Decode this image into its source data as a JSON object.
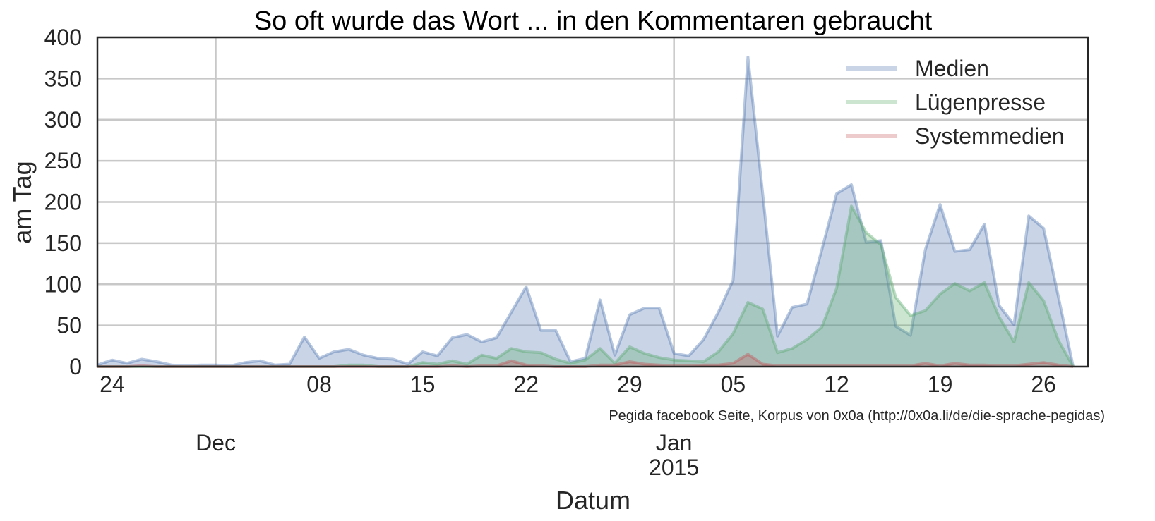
{
  "chart_data": {
    "type": "area",
    "title": "So oft wurde das Wort ... in den Kommentaren gebraucht",
    "xlabel": "Datum",
    "ylabel": "am Tag",
    "ylim": [
      0,
      400
    ],
    "yticks": [
      0,
      50,
      100,
      150,
      200,
      250,
      300,
      350,
      400
    ],
    "xlim": [
      "2014-11-23",
      "2015-01-29"
    ],
    "minor_ticks": [
      {
        "date": "2014-11-24",
        "label": "24"
      },
      {
        "date": "2014-12-08",
        "label": "08"
      },
      {
        "date": "2014-12-15",
        "label": "15"
      },
      {
        "date": "2014-12-22",
        "label": "22"
      },
      {
        "date": "2014-12-29",
        "label": "29"
      },
      {
        "date": "2015-01-05",
        "label": "05"
      },
      {
        "date": "2015-01-12",
        "label": "12"
      },
      {
        "date": "2015-01-19",
        "label": "19"
      },
      {
        "date": "2015-01-26",
        "label": "26"
      }
    ],
    "major_ticks": [
      {
        "date": "2014-12-01",
        "label": "Dec"
      },
      {
        "date": "2015-01-01",
        "label": "Jan",
        "sublabel": "2015"
      }
    ],
    "annotation": "Pegida facebook Seite, Korpus von 0x0a (http://0x0a.li/de/die-sprache-pegidas)",
    "grid": true,
    "legend_position": "top-right",
    "series": [
      {
        "name": "Medien",
        "color": "#4C72B0",
        "points": [
          [
            "2014-11-23",
            2
          ],
          [
            "2014-11-24",
            8
          ],
          [
            "2014-11-25",
            4
          ],
          [
            "2014-11-26",
            9
          ],
          [
            "2014-11-27",
            6
          ],
          [
            "2014-11-28",
            2
          ],
          [
            "2014-11-29",
            1
          ],
          [
            "2014-11-30",
            2
          ],
          [
            "2014-12-01",
            2
          ],
          [
            "2014-12-02",
            1
          ],
          [
            "2014-12-03",
            5
          ],
          [
            "2014-12-04",
            7
          ],
          [
            "2014-12-05",
            2
          ],
          [
            "2014-12-06",
            3
          ],
          [
            "2014-12-07",
            36
          ],
          [
            "2014-12-08",
            10
          ],
          [
            "2014-12-09",
            18
          ],
          [
            "2014-12-10",
            21
          ],
          [
            "2014-12-11",
            14
          ],
          [
            "2014-12-12",
            10
          ],
          [
            "2014-12-13",
            9
          ],
          [
            "2014-12-14",
            3
          ],
          [
            "2014-12-15",
            18
          ],
          [
            "2014-12-16",
            13
          ],
          [
            "2014-12-17",
            35
          ],
          [
            "2014-12-18",
            39
          ],
          [
            "2014-12-19",
            30
          ],
          [
            "2014-12-20",
            35
          ],
          [
            "2014-12-21",
            66
          ],
          [
            "2014-12-22",
            97
          ],
          [
            "2014-12-23",
            44
          ],
          [
            "2014-12-24",
            44
          ],
          [
            "2014-12-25",
            6
          ],
          [
            "2014-12-26",
            10
          ],
          [
            "2014-12-27",
            81
          ],
          [
            "2014-12-28",
            14
          ],
          [
            "2014-12-29",
            63
          ],
          [
            "2014-12-30",
            71
          ],
          [
            "2014-12-31",
            71
          ],
          [
            "2015-01-01",
            16
          ],
          [
            "2015-01-02",
            13
          ],
          [
            "2015-01-03",
            33
          ],
          [
            "2015-01-04",
            66
          ],
          [
            "2015-01-05",
            105
          ],
          [
            "2015-01-06",
            376
          ],
          [
            "2015-01-07",
            210
          ],
          [
            "2015-01-08",
            37
          ],
          [
            "2015-01-09",
            72
          ],
          [
            "2015-01-10",
            76
          ],
          [
            "2015-01-11",
            142
          ],
          [
            "2015-01-12",
            210
          ],
          [
            "2015-01-13",
            221
          ],
          [
            "2015-01-14",
            151
          ],
          [
            "2015-01-15",
            153
          ],
          [
            "2015-01-16",
            49
          ],
          [
            "2015-01-17",
            38
          ],
          [
            "2015-01-18",
            142
          ],
          [
            "2015-01-19",
            197
          ],
          [
            "2015-01-20",
            140
          ],
          [
            "2015-01-21",
            142
          ],
          [
            "2015-01-22",
            173
          ],
          [
            "2015-01-23",
            74
          ],
          [
            "2015-01-24",
            51
          ],
          [
            "2015-01-25",
            183
          ],
          [
            "2015-01-26",
            168
          ],
          [
            "2015-01-27",
            85
          ],
          [
            "2015-01-28",
            0
          ]
        ]
      },
      {
        "name": "Lügenpresse",
        "color": "#55A868",
        "points": [
          [
            "2014-11-23",
            0
          ],
          [
            "2014-11-24",
            0
          ],
          [
            "2014-11-25",
            0
          ],
          [
            "2014-11-26",
            0
          ],
          [
            "2014-11-27",
            0
          ],
          [
            "2014-11-28",
            0
          ],
          [
            "2014-11-29",
            0
          ],
          [
            "2014-11-30",
            0
          ],
          [
            "2014-12-01",
            0
          ],
          [
            "2014-12-02",
            0
          ],
          [
            "2014-12-03",
            0
          ],
          [
            "2014-12-04",
            0
          ],
          [
            "2014-12-05",
            0
          ],
          [
            "2014-12-06",
            0
          ],
          [
            "2014-12-07",
            0
          ],
          [
            "2014-12-08",
            0
          ],
          [
            "2014-12-09",
            0
          ],
          [
            "2014-12-10",
            2
          ],
          [
            "2014-12-11",
            2
          ],
          [
            "2014-12-12",
            0
          ],
          [
            "2014-12-13",
            0
          ],
          [
            "2014-12-14",
            0
          ],
          [
            "2014-12-15",
            5
          ],
          [
            "2014-12-16",
            3
          ],
          [
            "2014-12-17",
            7
          ],
          [
            "2014-12-18",
            3
          ],
          [
            "2014-12-19",
            14
          ],
          [
            "2014-12-20",
            10
          ],
          [
            "2014-12-21",
            22
          ],
          [
            "2014-12-22",
            18
          ],
          [
            "2014-12-23",
            17
          ],
          [
            "2014-12-24",
            9
          ],
          [
            "2014-12-25",
            4
          ],
          [
            "2014-12-26",
            8
          ],
          [
            "2014-12-27",
            22
          ],
          [
            "2014-12-28",
            4
          ],
          [
            "2014-12-29",
            24
          ],
          [
            "2014-12-30",
            16
          ],
          [
            "2014-12-31",
            11
          ],
          [
            "2015-01-01",
            8
          ],
          [
            "2015-01-02",
            7
          ],
          [
            "2015-01-03",
            6
          ],
          [
            "2015-01-04",
            18
          ],
          [
            "2015-01-05",
            40
          ],
          [
            "2015-01-06",
            78
          ],
          [
            "2015-01-07",
            70
          ],
          [
            "2015-01-08",
            17
          ],
          [
            "2015-01-09",
            22
          ],
          [
            "2015-01-10",
            33
          ],
          [
            "2015-01-11",
            48
          ],
          [
            "2015-01-12",
            95
          ],
          [
            "2015-01-13",
            195
          ],
          [
            "2015-01-14",
            163
          ],
          [
            "2015-01-15",
            148
          ],
          [
            "2015-01-16",
            84
          ],
          [
            "2015-01-17",
            62
          ],
          [
            "2015-01-18",
            68
          ],
          [
            "2015-01-19",
            88
          ],
          [
            "2015-01-20",
            101
          ],
          [
            "2015-01-21",
            92
          ],
          [
            "2015-01-22",
            102
          ],
          [
            "2015-01-23",
            60
          ],
          [
            "2015-01-24",
            30
          ],
          [
            "2015-01-25",
            102
          ],
          [
            "2015-01-26",
            80
          ],
          [
            "2015-01-27",
            32
          ],
          [
            "2015-01-28",
            0
          ]
        ]
      },
      {
        "name": "Systemmedien",
        "color": "#C44E52",
        "points": [
          [
            "2014-11-23",
            0
          ],
          [
            "2014-11-24",
            0
          ],
          [
            "2014-11-25",
            0
          ],
          [
            "2014-11-26",
            1
          ],
          [
            "2014-11-27",
            0
          ],
          [
            "2014-11-28",
            0
          ],
          [
            "2014-11-29",
            0
          ],
          [
            "2014-11-30",
            0
          ],
          [
            "2014-12-01",
            0
          ],
          [
            "2014-12-02",
            0
          ],
          [
            "2014-12-03",
            0
          ],
          [
            "2014-12-04",
            0
          ],
          [
            "2014-12-05",
            0
          ],
          [
            "2014-12-06",
            0
          ],
          [
            "2014-12-07",
            0
          ],
          [
            "2014-12-08",
            0
          ],
          [
            "2014-12-09",
            0
          ],
          [
            "2014-12-10",
            0
          ],
          [
            "2014-12-11",
            0
          ],
          [
            "2014-12-12",
            0
          ],
          [
            "2014-12-13",
            0
          ],
          [
            "2014-12-14",
            0
          ],
          [
            "2014-12-15",
            0
          ],
          [
            "2014-12-16",
            0
          ],
          [
            "2014-12-17",
            1
          ],
          [
            "2014-12-18",
            0
          ],
          [
            "2014-12-19",
            1
          ],
          [
            "2014-12-20",
            1
          ],
          [
            "2014-12-21",
            7
          ],
          [
            "2014-12-22",
            2
          ],
          [
            "2014-12-23",
            1
          ],
          [
            "2014-12-24",
            0
          ],
          [
            "2014-12-25",
            0
          ],
          [
            "2014-12-26",
            0
          ],
          [
            "2014-12-27",
            2
          ],
          [
            "2014-12-28",
            2
          ],
          [
            "2014-12-29",
            6
          ],
          [
            "2014-12-30",
            3
          ],
          [
            "2014-12-31",
            2
          ],
          [
            "2015-01-01",
            1
          ],
          [
            "2015-01-02",
            1
          ],
          [
            "2015-01-03",
            2
          ],
          [
            "2015-01-04",
            2
          ],
          [
            "2015-01-05",
            4
          ],
          [
            "2015-01-06",
            15
          ],
          [
            "2015-01-07",
            3
          ],
          [
            "2015-01-08",
            1
          ],
          [
            "2015-01-09",
            1
          ],
          [
            "2015-01-10",
            1
          ],
          [
            "2015-01-11",
            1
          ],
          [
            "2015-01-12",
            1
          ],
          [
            "2015-01-13",
            1
          ],
          [
            "2015-01-14",
            1
          ],
          [
            "2015-01-15",
            1
          ],
          [
            "2015-01-16",
            1
          ],
          [
            "2015-01-17",
            1
          ],
          [
            "2015-01-18",
            4
          ],
          [
            "2015-01-19",
            1
          ],
          [
            "2015-01-20",
            4
          ],
          [
            "2015-01-21",
            2
          ],
          [
            "2015-01-22",
            2
          ],
          [
            "2015-01-23",
            1
          ],
          [
            "2015-01-24",
            1
          ],
          [
            "2015-01-25",
            3
          ],
          [
            "2015-01-26",
            5
          ],
          [
            "2015-01-27",
            2
          ],
          [
            "2015-01-28",
            0
          ]
        ]
      }
    ]
  }
}
